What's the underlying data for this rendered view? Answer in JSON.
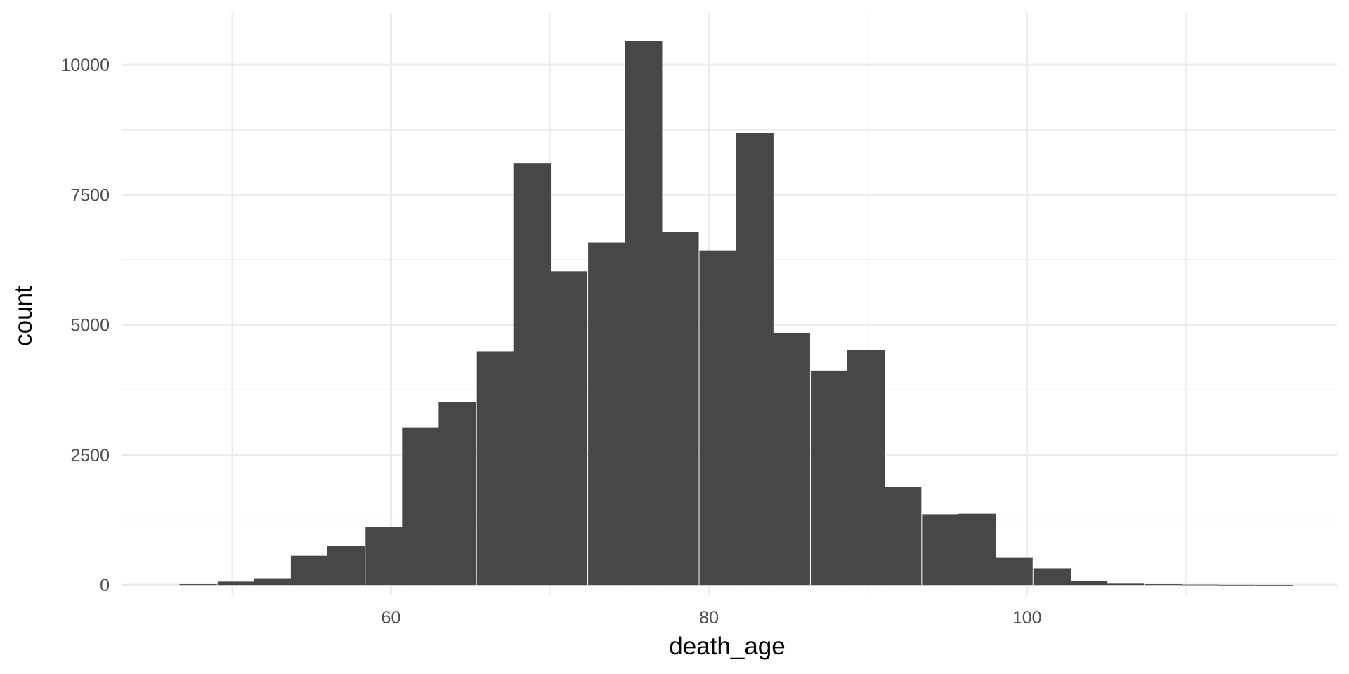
{
  "chart_data": {
    "type": "bar",
    "subtype": "histogram",
    "title": "",
    "xlabel": "death_age",
    "ylabel": "count",
    "xlim": [
      43.1,
      119.5
    ],
    "ylim": [
      -200,
      11000
    ],
    "x_ticks": [
      60,
      80,
      100
    ],
    "x_minor": [
      50,
      70,
      90,
      110
    ],
    "y_ticks": [
      0,
      2500,
      5000,
      7500,
      10000
    ],
    "y_minor": [
      1250,
      3750,
      6250,
      8750
    ],
    "bin_width": 2.33,
    "bins": [
      {
        "start": 46.7,
        "count": 15
      },
      {
        "start": 49.1,
        "count": 65
      },
      {
        "start": 51.4,
        "count": 130
      },
      {
        "start": 53.7,
        "count": 560
      },
      {
        "start": 56.0,
        "count": 750
      },
      {
        "start": 58.4,
        "count": 1110
      },
      {
        "start": 60.7,
        "count": 3030
      },
      {
        "start": 63.0,
        "count": 3520
      },
      {
        "start": 65.4,
        "count": 4490
      },
      {
        "start": 67.7,
        "count": 8110
      },
      {
        "start": 70.0,
        "count": 6030
      },
      {
        "start": 72.4,
        "count": 6580
      },
      {
        "start": 74.7,
        "count": 10460
      },
      {
        "start": 77.0,
        "count": 6780
      },
      {
        "start": 79.4,
        "count": 6430
      },
      {
        "start": 81.7,
        "count": 8680
      },
      {
        "start": 84.0,
        "count": 4840
      },
      {
        "start": 86.4,
        "count": 4120
      },
      {
        "start": 88.7,
        "count": 4510
      },
      {
        "start": 91.0,
        "count": 1890
      },
      {
        "start": 93.4,
        "count": 1360
      },
      {
        "start": 95.7,
        "count": 1370
      },
      {
        "start": 98.0,
        "count": 520
      },
      {
        "start": 100.4,
        "count": 320
      },
      {
        "start": 102.7,
        "count": 70
      },
      {
        "start": 105.0,
        "count": 25
      },
      {
        "start": 107.4,
        "count": 15
      },
      {
        "start": 109.7,
        "count": 8
      },
      {
        "start": 112.0,
        "count": 4
      },
      {
        "start": 114.4,
        "count": 2
      }
    ],
    "grid": true,
    "bar_color": "#474747",
    "grid_major_color": "#ebebeb",
    "grid_minor_color": "#ebebeb",
    "legend": "none"
  }
}
